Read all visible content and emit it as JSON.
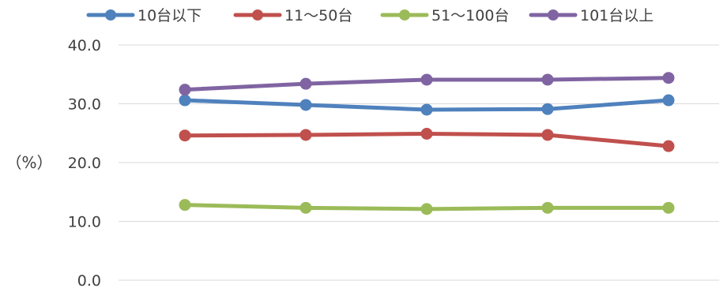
{
  "chart_data": {
    "type": "line",
    "title": "",
    "xlabel": "",
    "ylabel": "（%）",
    "ylim": [
      0,
      40
    ],
    "yticks": [
      "0.0",
      "10.0",
      "20.0",
      "30.0",
      "40.0"
    ],
    "categories": [
      "",
      "",
      "",
      "",
      ""
    ],
    "grid": true,
    "legend_position": "top",
    "series": [
      {
        "name": "10台以下",
        "color": "#4f81bd",
        "values": [
          30.6,
          29.8,
          29.0,
          29.1,
          30.6
        ]
      },
      {
        "name": "11〜50台",
        "color": "#c0504d",
        "values": [
          24.6,
          24.7,
          24.9,
          24.7,
          22.8
        ]
      },
      {
        "name": "51〜100台",
        "color": "#9bbb59",
        "values": [
          12.8,
          12.3,
          12.1,
          12.3,
          12.3
        ]
      },
      {
        "name": "101台以上",
        "color": "#8064a2",
        "values": [
          32.4,
          33.4,
          34.1,
          34.1,
          34.4
        ]
      }
    ]
  }
}
